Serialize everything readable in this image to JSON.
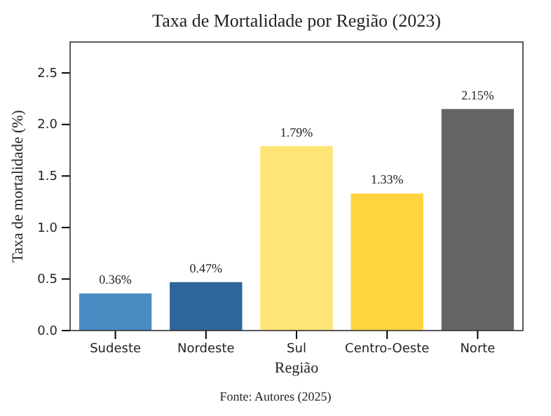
{
  "chart_data": {
    "type": "bar",
    "title": "Taxa de Mortalidade por Região (2023)",
    "xlabel": "Região",
    "ylabel": "Taxa de mortalidade (%)",
    "categories": [
      "Sudeste",
      "Nordeste",
      "Sul",
      "Centro-Oeste",
      "Norte"
    ],
    "values": [
      0.36,
      0.47,
      1.79,
      1.33,
      2.15
    ],
    "colors": [
      "#4a8bc4",
      "#2e6699",
      "#ffe476",
      "#ffd43f",
      "#646464"
    ],
    "value_labels": [
      "0.36%",
      "0.47%",
      "1.79%",
      "1.33%",
      "2.15%"
    ],
    "ylim": [
      0,
      2.8
    ],
    "yticks": [
      {
        "value": 0,
        "label": "0.0"
      },
      {
        "value": 0.5,
        "label": "0.5"
      },
      {
        "value": 1,
        "label": "1.0"
      },
      {
        "value": 1.5,
        "label": "1.5"
      },
      {
        "value": 2,
        "label": "2.0"
      },
      {
        "value": 2.5,
        "label": "2.5"
      }
    ],
    "grid": false,
    "annotations": [
      "Fonte: Autores (2025)"
    ]
  }
}
